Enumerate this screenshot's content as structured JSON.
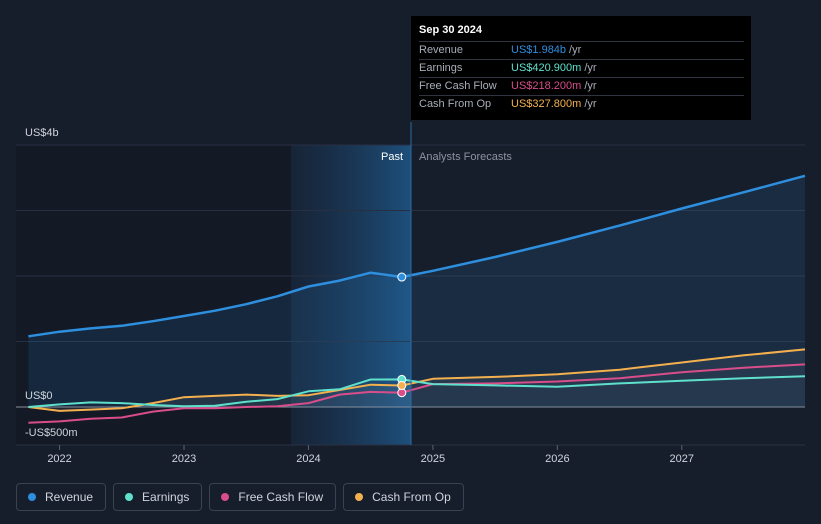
{
  "chart_data": {
    "type": "line",
    "y_axis": {
      "labels": [
        "US$4b",
        "US$0",
        "-US$500m"
      ],
      "ylim": [
        -500,
        4000
      ],
      "unit": "US$m"
    },
    "x_axis": {
      "ticks": [
        "2022",
        "2023",
        "2024",
        "2025",
        "2026",
        "2027"
      ],
      "xlim": [
        2021.65,
        2027.99
      ]
    },
    "regions": {
      "past_label": "Past",
      "forecast_label": "Analysts Forecasts",
      "past_start": 2023.75,
      "divider": 2024.75
    },
    "series": [
      {
        "name": "Revenue",
        "color": "#2e8fdf",
        "x": [
          2021.75,
          2022.0,
          2022.25,
          2022.5,
          2022.75,
          2023.0,
          2023.25,
          2023.5,
          2023.75,
          2024.0,
          2024.25,
          2024.5,
          2024.75,
          2025.0,
          2025.5,
          2026.0,
          2026.5,
          2027.0,
          2027.5,
          2027.99
        ],
        "values": [
          1080,
          1150,
          1200,
          1240,
          1310,
          1390,
          1470,
          1570,
          1690,
          1840,
          1930,
          2050,
          1984,
          2080,
          2290,
          2520,
          2770,
          3030,
          3280,
          3530
        ]
      },
      {
        "name": "Earnings",
        "color": "#5ee0cc",
        "x": [
          2021.75,
          2022.0,
          2022.25,
          2022.5,
          2022.75,
          2023.0,
          2023.25,
          2023.5,
          2023.75,
          2024.0,
          2024.25,
          2024.5,
          2024.75,
          2025.0,
          2025.5,
          2026.0,
          2026.5,
          2027.0,
          2027.5,
          2027.99
        ],
        "values": [
          0,
          40,
          70,
          60,
          30,
          10,
          20,
          80,
          120,
          240,
          270,
          420,
          420.9,
          350,
          330,
          310,
          360,
          400,
          440,
          470
        ]
      },
      {
        "name": "Free Cash Flow",
        "color": "#d94d8a",
        "x": [
          2021.75,
          2022.0,
          2022.25,
          2022.5,
          2022.75,
          2023.0,
          2023.25,
          2023.5,
          2023.75,
          2024.0,
          2024.25,
          2024.5,
          2024.75,
          2025.0,
          2025.5,
          2026.0,
          2026.5,
          2027.0,
          2027.5,
          2027.99
        ],
        "values": [
          -240,
          -220,
          -180,
          -160,
          -70,
          -20,
          -20,
          0,
          10,
          60,
          190,
          230,
          218.2,
          350,
          360,
          390,
          440,
          530,
          600,
          650
        ]
      },
      {
        "name": "Cash From Op",
        "color": "#f4b04e",
        "x": [
          2021.75,
          2022.0,
          2022.25,
          2022.5,
          2022.75,
          2023.0,
          2023.25,
          2023.5,
          2023.75,
          2024.0,
          2024.25,
          2024.5,
          2024.75,
          2025.0,
          2025.5,
          2026.0,
          2026.5,
          2027.0,
          2027.5,
          2027.99
        ],
        "values": [
          0,
          -60,
          -40,
          -20,
          60,
          150,
          170,
          190,
          170,
          180,
          260,
          340,
          327.8,
          430,
          460,
          500,
          570,
          680,
          790,
          880
        ]
      }
    ],
    "highlight": {
      "x": 2024.75
    },
    "tooltip": {
      "date": "Sep 30 2024",
      "rows": [
        {
          "label": "Revenue",
          "value": "US$1.984b",
          "unit": "/yr",
          "color": "#2e8fdf"
        },
        {
          "label": "Earnings",
          "value": "US$420.900m",
          "unit": "/yr",
          "color": "#5ee0cc"
        },
        {
          "label": "Free Cash Flow",
          "value": "US$218.200m",
          "unit": "/yr",
          "color": "#d94d8a"
        },
        {
          "label": "Cash From Op",
          "value": "US$327.800m",
          "unit": "/yr",
          "color": "#f4b04e"
        }
      ]
    },
    "legend": [
      "Revenue",
      "Earnings",
      "Free Cash Flow",
      "Cash From Op"
    ]
  }
}
